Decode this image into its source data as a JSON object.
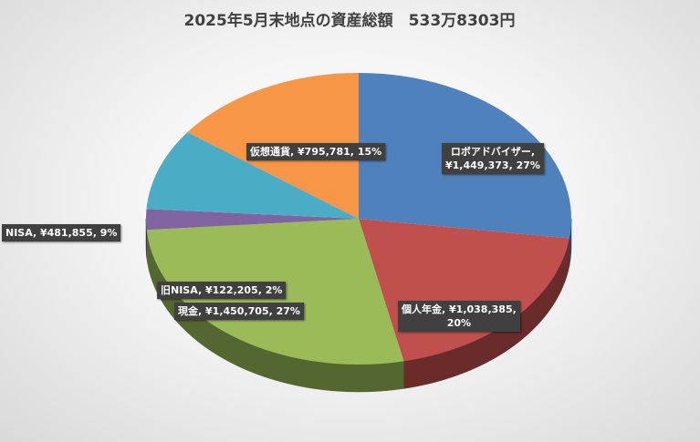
{
  "chart_data": {
    "type": "pie",
    "title": "2025年5月末地点の資産総額　533万8303円",
    "categories": [
      "ロボアドバイザー",
      "個人年金",
      "現金",
      "旧NISA",
      "NISA",
      "仮想通貨"
    ],
    "values": [
      1449373,
      1038385,
      1450705,
      122205,
      481855,
      795781
    ],
    "value_labels": [
      "¥1,449,373",
      "¥1,038,385",
      "¥1,450,705",
      "¥122,205",
      "¥481,855",
      "¥795,781"
    ],
    "percent_labels": [
      "27%",
      "20%",
      "27%",
      "2%",
      "9%",
      "15%"
    ],
    "label_separator": ", ",
    "colors": [
      "#4f81bd",
      "#c0504d",
      "#9bbb59",
      "#8064a2",
      "#4bacc6",
      "#f79646"
    ]
  }
}
